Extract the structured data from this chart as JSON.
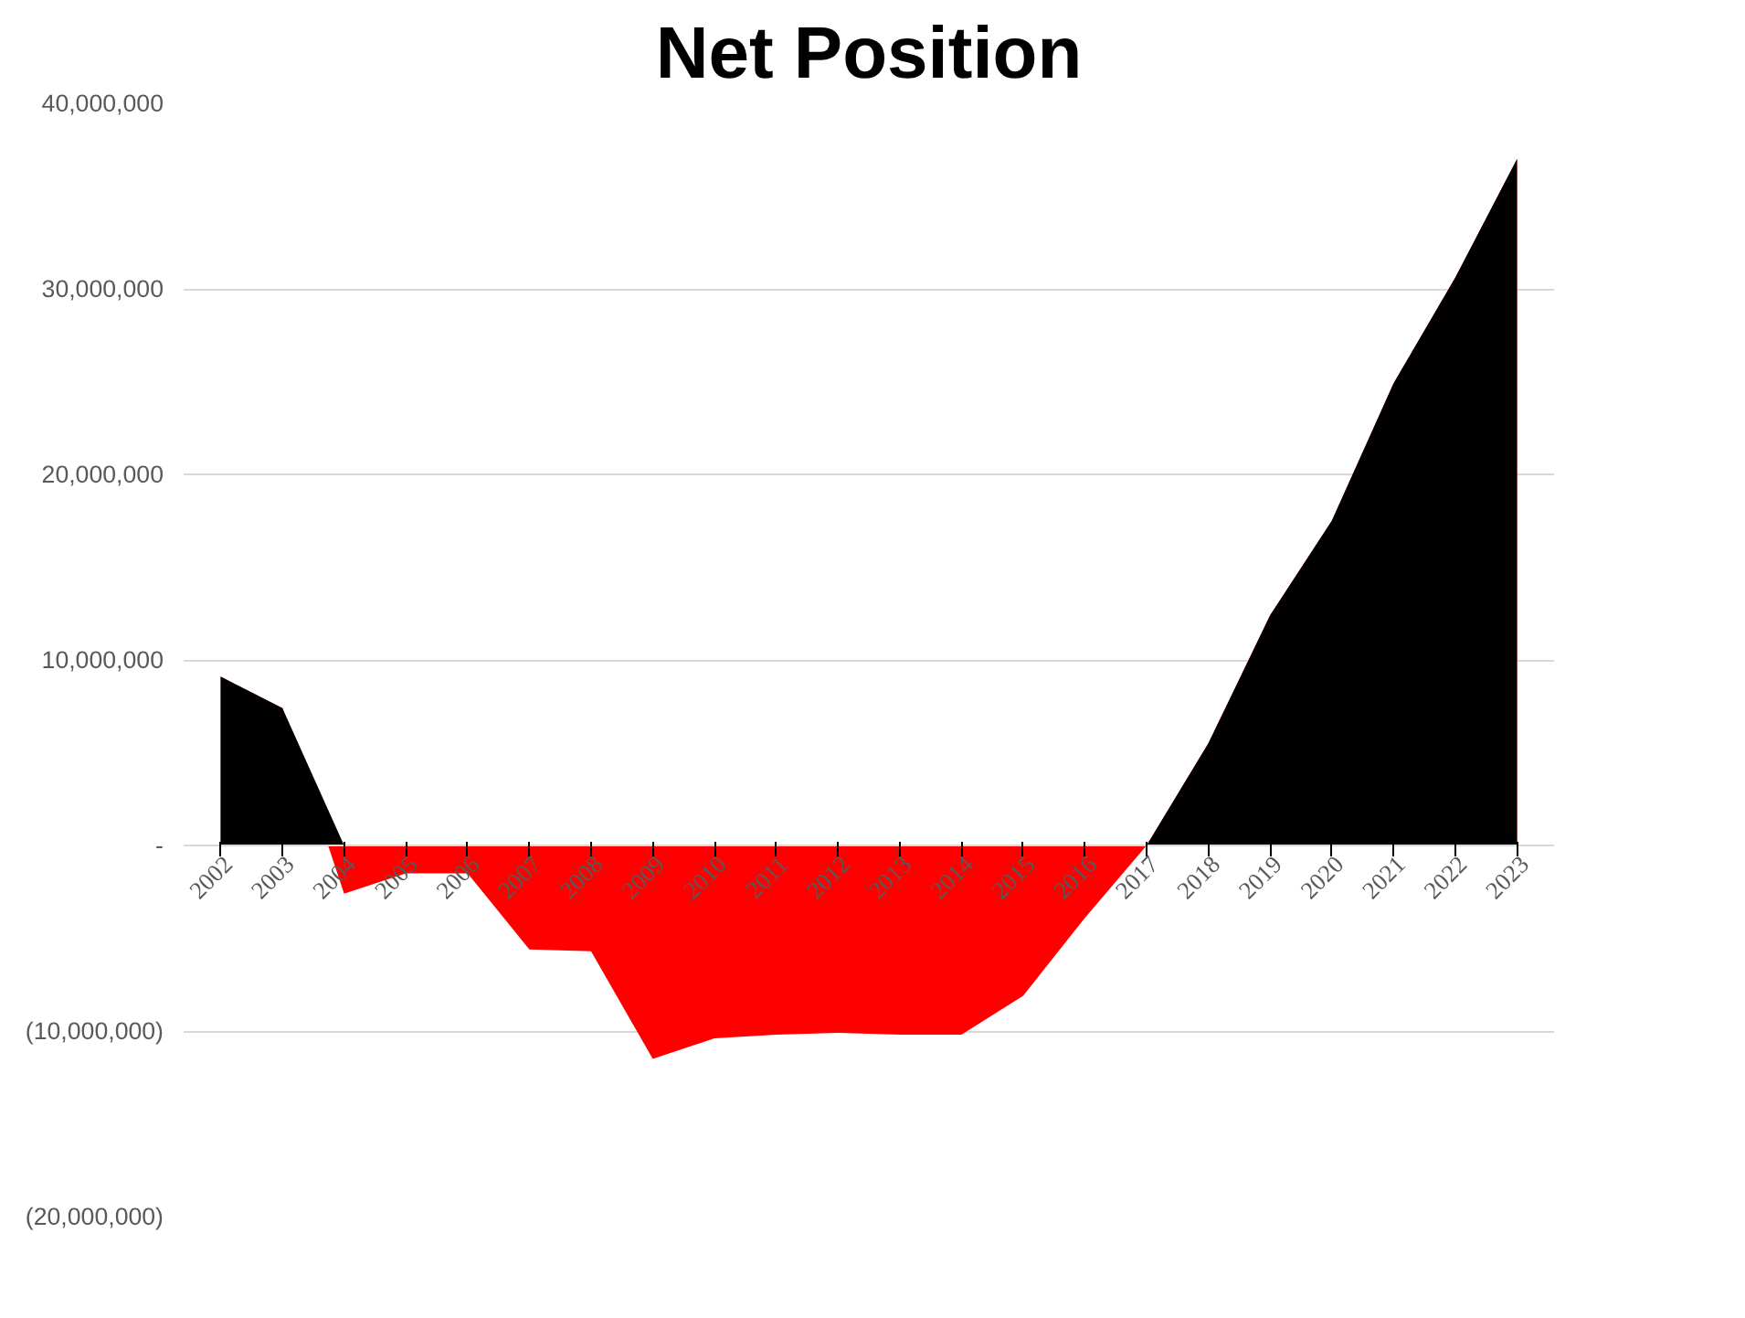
{
  "chart_data": {
    "type": "area",
    "title": "Net Position",
    "categories": [
      "2002",
      "2003",
      "2004",
      "2005",
      "2006",
      "2007",
      "2008",
      "2009",
      "2010",
      "2011",
      "2012",
      "2013",
      "2014",
      "2015",
      "2016",
      "2017",
      "2018",
      "2019",
      "2020",
      "2021",
      "2022",
      "2023"
    ],
    "series": [
      {
        "color": "#ff0000",
        "values": [
          9100000,
          7400000,
          -2600000,
          -1500000,
          -1500000,
          -5600000,
          -5700000,
          -11500000,
          -10400000,
          -10200000,
          -10100000,
          -10200000,
          -10200000,
          -8100000,
          -3900000,
          0,
          5500000,
          12400000,
          17500000,
          24900000,
          30600000,
          37000000
        ]
      },
      {
        "color": "#000000",
        "values": [
          9100000,
          7400000,
          0,
          0,
          0,
          0,
          0,
          0,
          0,
          0,
          0,
          0,
          0,
          0,
          0,
          0,
          5500000,
          12400000,
          17500000,
          24900000,
          30600000,
          37000000
        ]
      }
    ],
    "ylim": [
      -20000000,
      40000000
    ],
    "yticks": [
      {
        "value": -20000000,
        "label": "(20,000,000)"
      },
      {
        "value": -10000000,
        "label": "(10,000,000)"
      },
      {
        "value": 0,
        "label": "-"
      },
      {
        "value": 10000000,
        "label": "10,000,000"
      },
      {
        "value": 20000000,
        "label": "20,000,000"
      },
      {
        "value": 30000000,
        "label": "30,000,000"
      },
      {
        "value": 40000000,
        "label": "40,000,000"
      }
    ],
    "grid": "y"
  }
}
